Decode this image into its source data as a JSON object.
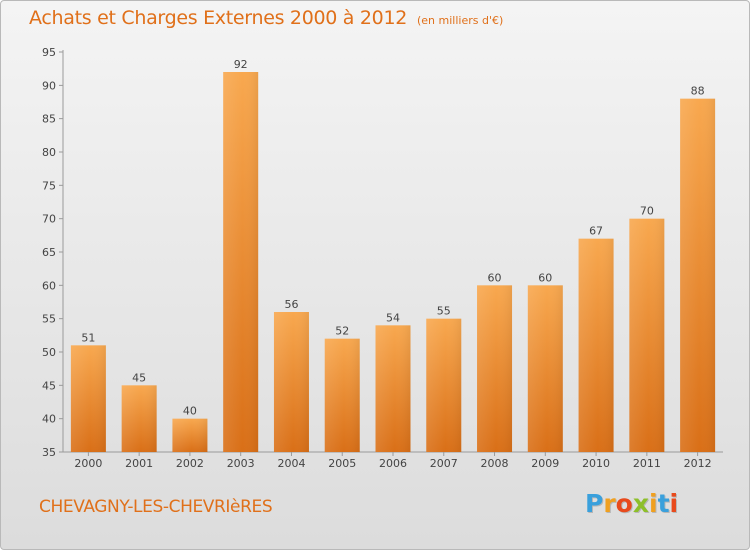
{
  "chart_data": {
    "type": "bar",
    "title": "Achats et Charges Externes 2000 à 2012",
    "subtitle": "(en milliers d'€)",
    "categories": [
      "2000",
      "2001",
      "2002",
      "2003",
      "2004",
      "2005",
      "2006",
      "2007",
      "2008",
      "2009",
      "2010",
      "2011",
      "2012"
    ],
    "values": [
      51,
      45,
      40,
      92,
      56,
      52,
      54,
      55,
      60,
      60,
      67,
      70,
      88
    ],
    "ylim": [
      35,
      95
    ],
    "yticks": [
      35,
      40,
      45,
      50,
      55,
      60,
      65,
      70,
      75,
      80,
      85,
      90,
      95
    ],
    "grid": false,
    "colors": {
      "bar_light": "#f8a84f",
      "bar_dark": "#d96f17",
      "text": "#e0701a"
    }
  },
  "commune": "CHEVAGNY-LES-CHEVRIèRES",
  "logo": {
    "text": "Proxiti",
    "letters": [
      "P",
      "r",
      "o",
      "x",
      "i",
      "t",
      "i"
    ],
    "colors": [
      "#3aa0dc",
      "#f0a020",
      "#e84a1c",
      "#8dbf2a",
      "#f0a020",
      "#3aa0dc",
      "#e84a1c"
    ]
  }
}
